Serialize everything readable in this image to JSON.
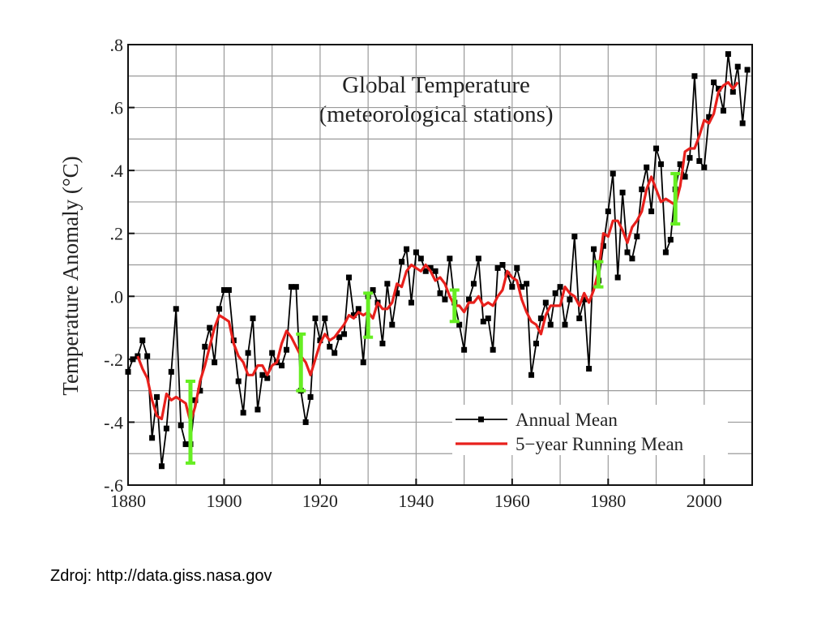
{
  "chart_data": {
    "type": "line",
    "title": "Global Temperature",
    "subtitle": "(meteorological stations)",
    "y_label": "Temperature Anomaly (°C)",
    "x": [
      1880,
      1881,
      1882,
      1883,
      1884,
      1885,
      1886,
      1887,
      1888,
      1889,
      1890,
      1891,
      1892,
      1893,
      1894,
      1895,
      1896,
      1897,
      1898,
      1899,
      1900,
      1901,
      1902,
      1903,
      1904,
      1905,
      1906,
      1907,
      1908,
      1909,
      1910,
      1911,
      1912,
      1913,
      1914,
      1915,
      1916,
      1917,
      1918,
      1919,
      1920,
      1921,
      1922,
      1923,
      1924,
      1925,
      1926,
      1927,
      1928,
      1929,
      1930,
      1931,
      1932,
      1933,
      1934,
      1935,
      1936,
      1937,
      1938,
      1939,
      1940,
      1941,
      1942,
      1943,
      1944,
      1945,
      1946,
      1947,
      1948,
      1949,
      1950,
      1951,
      1952,
      1953,
      1954,
      1955,
      1956,
      1957,
      1958,
      1959,
      1960,
      1961,
      1962,
      1963,
      1964,
      1965,
      1966,
      1967,
      1968,
      1969,
      1970,
      1971,
      1972,
      1973,
      1974,
      1975,
      1976,
      1977,
      1978,
      1979,
      1980,
      1981,
      1982,
      1983,
      1984,
      1985,
      1986,
      1987,
      1988,
      1989,
      1990,
      1991,
      1992,
      1993,
      1994,
      1995,
      1996,
      1997,
      1998,
      1999,
      2000,
      2001,
      2002,
      2003,
      2004,
      2005,
      2006,
      2007,
      2008,
      2009
    ],
    "series": [
      {
        "name": "Annual Mean",
        "color": "#000000",
        "markers": true,
        "values": [
          -0.24,
          -0.2,
          -0.19,
          -0.14,
          -0.19,
          -0.45,
          -0.32,
          -0.54,
          -0.42,
          -0.24,
          -0.04,
          -0.41,
          -0.47,
          -0.47,
          -0.33,
          -0.3,
          -0.16,
          -0.1,
          -0.21,
          -0.04,
          0.02,
          0.02,
          -0.14,
          -0.27,
          -0.37,
          -0.18,
          -0.07,
          -0.36,
          -0.25,
          -0.26,
          -0.18,
          -0.21,
          -0.22,
          -0.17,
          0.03,
          0.03,
          -0.3,
          -0.4,
          -0.32,
          -0.07,
          -0.14,
          -0.07,
          -0.16,
          -0.18,
          -0.13,
          -0.12,
          0.06,
          -0.06,
          -0.04,
          -0.21,
          0.0,
          0.02,
          -0.02,
          -0.15,
          0.04,
          -0.09,
          0.01,
          0.11,
          0.15,
          -0.02,
          0.14,
          0.12,
          0.08,
          0.09,
          0.08,
          0.01,
          -0.01,
          0.12,
          -0.02,
          -0.09,
          -0.17,
          -0.01,
          0.04,
          0.12,
          -0.08,
          -0.07,
          -0.17,
          0.09,
          0.1,
          0.07,
          0.03,
          0.09,
          0.03,
          0.04,
          -0.25,
          -0.15,
          -0.07,
          -0.02,
          -0.09,
          0.01,
          0.03,
          -0.09,
          -0.01,
          0.19,
          -0.07,
          -0.01,
          -0.23,
          0.15,
          0.05,
          0.16,
          0.27,
          0.39,
          0.06,
          0.33,
          0.14,
          0.12,
          0.19,
          0.34,
          0.41,
          0.27,
          0.47,
          0.42,
          0.14,
          0.18,
          0.34,
          0.42,
          0.38,
          0.44,
          0.7,
          0.43,
          0.41,
          0.57,
          0.68,
          0.66,
          0.59,
          0.77,
          0.65,
          0.73,
          0.55,
          0.72
        ]
      },
      {
        "name": "5−year Running Mean",
        "color": "#e8201c",
        "markers": false,
        "values": [
          null,
          null,
          -0.19,
          -0.23,
          -0.26,
          -0.33,
          -0.38,
          -0.39,
          -0.31,
          -0.33,
          -0.32,
          -0.33,
          -0.34,
          -0.4,
          -0.35,
          -0.27,
          -0.22,
          -0.16,
          -0.1,
          -0.06,
          -0.07,
          -0.08,
          -0.15,
          -0.19,
          -0.21,
          -0.25,
          -0.25,
          -0.22,
          -0.22,
          -0.25,
          -0.22,
          -0.21,
          -0.15,
          -0.11,
          -0.13,
          -0.16,
          -0.19,
          -0.21,
          -0.25,
          -0.2,
          -0.15,
          -0.12,
          -0.14,
          -0.13,
          -0.11,
          -0.09,
          -0.06,
          -0.07,
          -0.05,
          -0.06,
          -0.05,
          -0.07,
          -0.02,
          -0.04,
          -0.04,
          -0.02,
          0.04,
          0.03,
          0.08,
          0.1,
          0.09,
          0.08,
          0.1,
          0.08,
          0.05,
          0.06,
          0.04,
          0.0,
          -0.03,
          -0.03,
          -0.05,
          -0.02,
          -0.02,
          0.0,
          -0.03,
          -0.02,
          -0.03,
          0.0,
          0.02,
          0.08,
          0.06,
          0.05,
          -0.01,
          -0.05,
          -0.08,
          -0.09,
          -0.12,
          -0.06,
          -0.03,
          -0.03,
          -0.03,
          0.03,
          0.01,
          0.0,
          -0.03,
          0.01,
          -0.02,
          0.02,
          0.08,
          0.2,
          0.19,
          0.24,
          0.24,
          0.21,
          0.17,
          0.22,
          0.24,
          0.27,
          0.34,
          0.38,
          0.34,
          0.3,
          0.31,
          0.3,
          0.29,
          0.35,
          0.46,
          0.47,
          0.47,
          0.51,
          0.56,
          0.55,
          0.58,
          0.65,
          0.67,
          0.68,
          0.66,
          0.68,
          null,
          null
        ]
      }
    ],
    "error_bars": {
      "color": "#66ee22",
      "x": [
        1893,
        1916,
        1930,
        1948,
        1978,
        1994
      ],
      "values": [
        -0.4,
        -0.21,
        -0.06,
        -0.03,
        0.07,
        0.31
      ],
      "errors": [
        0.13,
        0.09,
        0.07,
        0.05,
        0.04,
        0.08
      ]
    },
    "xlim": [
      1880,
      2010
    ],
    "ylim": [
      -0.6,
      0.8
    ],
    "xticks": [
      1880,
      1900,
      1920,
      1940,
      1960,
      1980,
      2000
    ],
    "yticks": [
      {
        "value": 0.8,
        "label": ".8"
      },
      {
        "value": 0.6,
        "label": ".6"
      },
      {
        "value": 0.4,
        "label": ".4"
      },
      {
        "value": 0.2,
        "label": ".2"
      },
      {
        "value": 0,
        "label": ".0"
      },
      {
        "value": -0.2,
        "label": "-.2"
      },
      {
        "value": -0.4,
        "label": "-.4"
      },
      {
        "value": -0.6,
        "label": "-.6"
      }
    ],
    "xgrid": [
      1890,
      1900,
      1910,
      1920,
      1930,
      1940,
      1950,
      1960,
      1970,
      1980,
      1990,
      2000
    ],
    "ygrid": [
      -0.5,
      -0.4,
      -0.3,
      -0.2,
      -0.1,
      0,
      0.1,
      0.2,
      0.3,
      0.4,
      0.5,
      0.6,
      0.7
    ],
    "legend": "lower right"
  },
  "caption": "Zdroj: http://data.giss.nasa.gov"
}
